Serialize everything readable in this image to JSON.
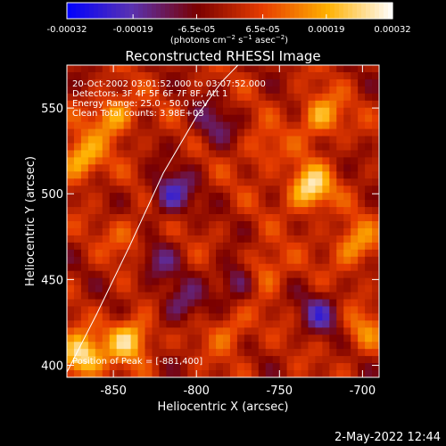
{
  "chart_data": {
    "type": "heatmap",
    "title": "Reconstructed RHESSI Image",
    "xlabel": "Heliocentric X (arcsec)",
    "ylabel": "Heliocentric Y (arcsec)",
    "xlim": [
      -878,
      -690
    ],
    "ylim": [
      393,
      575
    ],
    "xticks": [
      -850,
      -800,
      -750,
      -700
    ],
    "yticks": [
      400,
      450,
      500,
      550
    ],
    "colorbar": {
      "ticks": [
        -0.00032,
        -0.00019,
        -6.5e-05,
        6.5e-05,
        0.00019,
        0.00032
      ],
      "tick_labels": [
        "-0.00032",
        "-0.00019",
        "-6.5e-05",
        "6.5e-05",
        "0.00019",
        "0.00032"
      ],
      "range": [
        -0.00032,
        0.00032
      ],
      "colors": [
        "#0000ff",
        "#5a32b0",
        "#7a0000",
        "#e63c00",
        "#ffb000",
        "#ffffff"
      ]
    },
    "annotations": [
      "20-Oct-2002 03:01:52.000 to 03:07:52.000",
      "Detectors: 3F 4F 5F 6F 7F 8F, Att 1",
      "Energy Range: 25.0 - 50.0 keV",
      "Clean    Total counts: 3.98E+03",
      "Position of Peak = [-881,400]"
    ],
    "limb_curve": [
      [
        -878,
        396
      ],
      [
        -860,
        430
      ],
      [
        -840,
        470
      ],
      [
        -820,
        512
      ],
      [
        -800,
        545
      ],
      [
        -785,
        565
      ],
      [
        -775,
        575
      ]
    ],
    "sources": [
      {
        "x": -732,
        "y": 503,
        "value": 0.00028
      },
      {
        "x": -870,
        "y": 520,
        "value": 0.00022
      },
      {
        "x": -840,
        "y": 415,
        "value": 0.00025
      },
      {
        "x": -850,
        "y": 545,
        "value": 0.0002
      },
      {
        "x": -725,
        "y": 545,
        "value": 0.0002
      },
      {
        "x": -760,
        "y": 455,
        "value": 0.00016
      },
      {
        "x": -705,
        "y": 470,
        "value": 0.00018
      },
      {
        "x": -870,
        "y": 405,
        "value": 0.0003
      },
      {
        "x": -780,
        "y": 420,
        "value": 0.00012
      },
      {
        "x": -700,
        "y": 420,
        "value": 0.00012
      },
      {
        "x": -760,
        "y": 525,
        "value": 0.0001
      },
      {
        "x": -840,
        "y": 475,
        "value": 0.0001
      }
    ],
    "sinks": [
      {
        "x": -815,
        "y": 500,
        "value": -0.0002
      },
      {
        "x": -775,
        "y": 450,
        "value": -0.00018
      },
      {
        "x": -810,
        "y": 435,
        "value": -0.00014
      },
      {
        "x": -790,
        "y": 540,
        "value": -0.00012
      },
      {
        "x": -725,
        "y": 430,
        "value": -0.00016
      },
      {
        "x": -825,
        "y": 460,
        "value": -0.00012
      }
    ]
  },
  "footer": {
    "timestamp": "2-May-2022 12:44"
  }
}
